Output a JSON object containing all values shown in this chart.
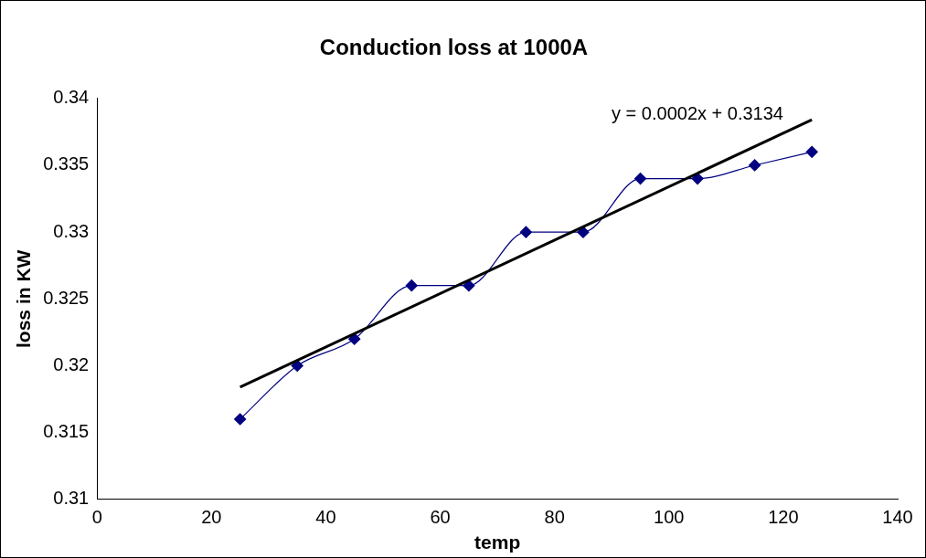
{
  "chart_data": {
    "type": "line",
    "title": "Conduction loss at 1000A",
    "xlabel": "temp",
    "ylabel": "loss in KW",
    "series": [
      {
        "type": "line",
        "color": "#000080",
        "marker": "diamond",
        "x": [
          25,
          35,
          45,
          55,
          65,
          75,
          85,
          95,
          105,
          115,
          125
        ],
        "values": [
          0.316,
          0.32,
          0.322,
          0.326,
          0.326,
          0.33,
          0.33,
          0.334,
          0.334,
          0.335,
          0.336
        ]
      },
      {
        "type": "line",
        "color": "#000000",
        "marker": "none",
        "x": [
          25,
          125
        ],
        "values": [
          0.3184,
          0.3384
        ]
      }
    ],
    "annotations": [
      "y = 0.0002x + 0.3134"
    ],
    "xlim": [
      0,
      140
    ],
    "xticks": [
      0,
      20,
      40,
      60,
      80,
      100,
      120,
      140
    ],
    "ylim": [
      0.31,
      0.34
    ],
    "yticks": [
      0.31,
      0.315,
      0.32,
      0.325,
      0.33,
      0.335,
      0.34
    ],
    "grid": false,
    "legend": false
  }
}
